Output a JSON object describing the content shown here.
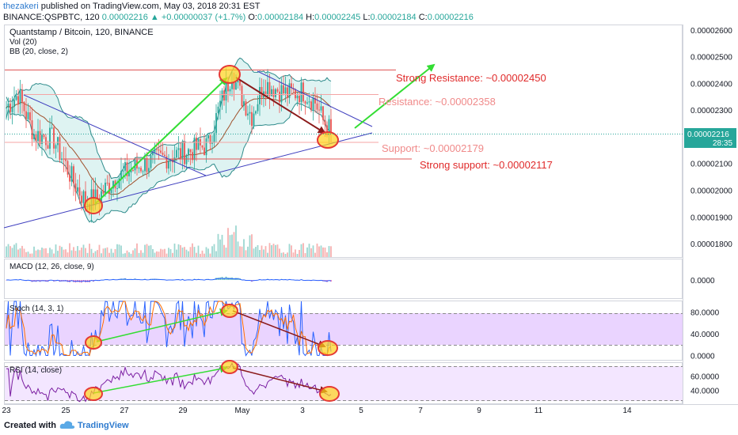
{
  "header": {
    "author": "thezakeri",
    "published": " published on TradingView.com, May 03, 2018 20:31 EST",
    "symbol": "BINANCE:QSPBTC, 120",
    "last": "0.00002216",
    "change": "▲ +0.00000037 (+1.7%)",
    "o_label": "O:",
    "o": "0.00002184",
    "h_label": "H:",
    "h": "0.00002245",
    "l_label": "L:",
    "l": "0.00002184",
    "c_label": "C:",
    "c": "0.00002216"
  },
  "panes": {
    "main_title": "Quantstamp / Bitcoin, 120, BINANCE",
    "vol_label": "Vol (20)",
    "bb_label": "BB (20, close, 2)",
    "macd_label": "MACD (12, 26, close, 9)",
    "stoch_label": "Stoch (14, 3, 1)",
    "rsi_label": "RSI (14, close)"
  },
  "price_tag": {
    "price": "0.00002216",
    "timer": "28:35"
  },
  "annotations": {
    "strong_resistance": "Strong Resistance: ~0.00002450",
    "resistance": "Resistance: ~0.00002358",
    "support": "Support: ~0.00002179",
    "strong_support": "Strong support: ~0.00002117"
  },
  "footer": {
    "created": "Created with",
    "brand": "TradingView"
  },
  "colors": {
    "up": "#26a69a",
    "down": "#ef5350",
    "bb": "#2e8b8b",
    "bb_fill": "#d6f0ef",
    "trendline": "#3f3fbf",
    "green_arrow": "#33dd33",
    "red_arrow": "#8b1a1a",
    "strong_line": "#e05555",
    "weak_line": "#f4a4a4",
    "stoch_bg": "#e6ccff",
    "rsi_bg": "#f3e6ff"
  },
  "chart_data": {
    "type": "candlestick",
    "title": "Quantstamp / Bitcoin, 120, BINANCE",
    "x_tick_labels": [
      "23",
      "25",
      "27",
      "29",
      "May",
      "3",
      "5",
      "7",
      "9",
      "11",
      "14"
    ],
    "price_axis": {
      "ticks": [
        "0.00002600",
        "0.00002500",
        "0.00002400",
        "0.00002300",
        "0.00002100",
        "0.00002000",
        "0.00001900",
        "0.00001800"
      ],
      "ylim": [
        1.75e-05,
        2.62e-05
      ]
    },
    "macd_axis": {
      "ticks": [
        "0.0000"
      ]
    },
    "stoch_axis": {
      "ticks": [
        "80.0000",
        "40.0000",
        "0.0000"
      ],
      "ylim": [
        -8,
        100
      ]
    },
    "rsi_axis": {
      "ticks": [
        "60.0000",
        "40.0000"
      ],
      "ylim": [
        22,
        78
      ]
    },
    "levels": [
      {
        "name": "Strong Resistance",
        "value": 2.45e-05
      },
      {
        "name": "Resistance",
        "value": 2.358e-05
      },
      {
        "name": "Support",
        "value": 2.179e-05
      },
      {
        "name": "Strong support",
        "value": 2.117e-05
      }
    ],
    "ohlc_anchors": [
      [
        0,
        2.31e-05
      ],
      [
        6,
        2.36e-05
      ],
      [
        14,
        2.21e-05
      ],
      [
        24,
        2.19e-05
      ],
      [
        34,
        2.03e-05
      ],
      [
        40,
        1.96e-05
      ],
      [
        46,
        1.97e-05
      ],
      [
        54,
        2.04e-05
      ],
      [
        64,
        2.08e-05
      ],
      [
        74,
        2.11e-05
      ],
      [
        84,
        2.13e-05
      ],
      [
        94,
        2.15e-05
      ],
      [
        102,
        2.17e-05
      ],
      [
        108,
        2.32e-05
      ],
      [
        114,
        2.44e-05
      ],
      [
        118,
        2.36e-05
      ],
      [
        124,
        2.28e-05
      ],
      [
        130,
        2.4e-05
      ],
      [
        136,
        2.38e-05
      ],
      [
        142,
        2.36e-05
      ],
      [
        150,
        2.37e-05
      ],
      [
        156,
        2.33e-05
      ],
      [
        160,
        2.26e-05
      ],
      [
        164,
        2.22e-05
      ]
    ],
    "bar_count": 165,
    "last_price": 2.216e-05
  }
}
